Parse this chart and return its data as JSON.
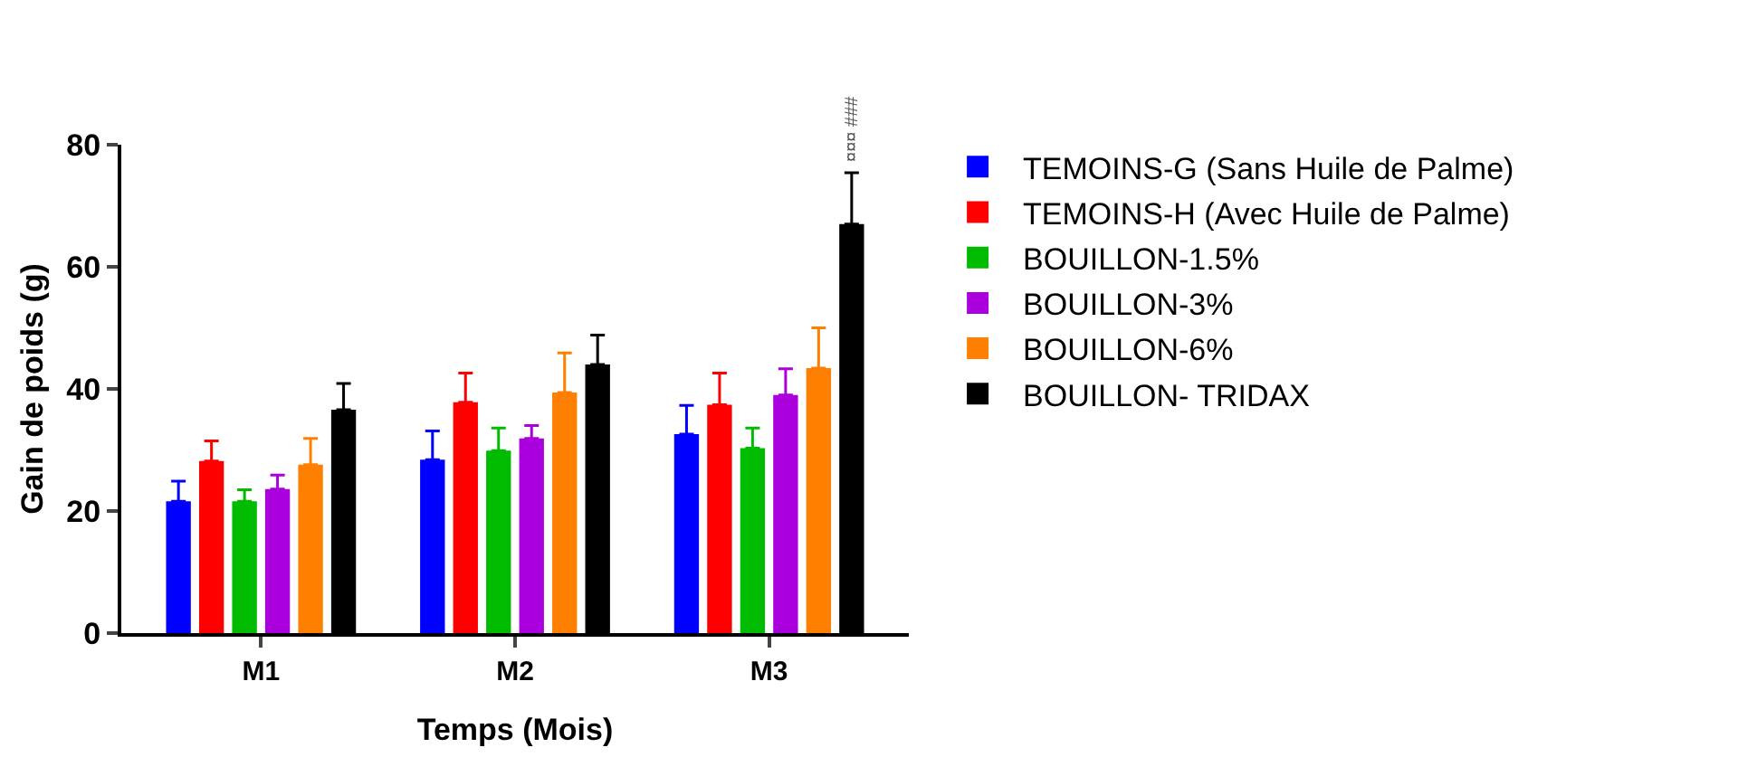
{
  "chart_data": {
    "type": "bar",
    "xlabel": "Temps (Mois)",
    "ylabel": "Gain de poids (g)",
    "categories": [
      "M1",
      "M2",
      "M3"
    ],
    "ylim": [
      0,
      80
    ],
    "yticks": [
      0,
      20,
      40,
      60,
      80
    ],
    "grid": false,
    "legend": "right",
    "series": [
      {
        "name": "TEMOINS-G (Sans Huile de Palme)",
        "color": "#0000ff",
        "values": [
          21.6,
          28.4,
          32.6
        ],
        "errors": [
          [
            21.6,
            24.9
          ],
          [
            28.4,
            33.1
          ],
          [
            32.6,
            37.3
          ]
        ]
      },
      {
        "name": "TEMOINS-H (Avec Huile de Palme)",
        "color": "#ff0000",
        "values": [
          28.2,
          37.8,
          37.4
        ],
        "errors": [
          [
            28.2,
            31.5
          ],
          [
            37.8,
            42.6
          ],
          [
            37.4,
            42.6
          ]
        ]
      },
      {
        "name": "BOUILLON-1.5%",
        "color": "#00bb00",
        "values": [
          21.6,
          29.9,
          30.3
        ],
        "errors": [
          [
            21.6,
            23.5
          ],
          [
            29.9,
            33.6
          ],
          [
            30.3,
            33.6
          ]
        ]
      },
      {
        "name": "BOUILLON-3%",
        "color": "#aa00dd",
        "values": [
          23.6,
          31.9,
          39.0
        ],
        "errors": [
          [
            23.6,
            25.9
          ],
          [
            31.9,
            34.0
          ],
          [
            39.0,
            43.3
          ]
        ]
      },
      {
        "name": "BOUILLON-6%",
        "color": "#ff8000",
        "values": [
          27.6,
          39.4,
          43.4
        ],
        "errors": [
          [
            27.6,
            31.9
          ],
          [
            39.4,
            45.9
          ],
          [
            43.4,
            50.0
          ]
        ]
      },
      {
        "name": "BOUILLON- TRIDAX",
        "color": "#000000",
        "values": [
          36.6,
          44.0,
          67.0
        ],
        "errors": [
          [
            36.6,
            40.9
          ],
          [
            44.0,
            48.8
          ],
          [
            67.0,
            75.4
          ]
        ]
      }
    ],
    "annotations": [
      "¤¤¤ ###"
    ]
  }
}
